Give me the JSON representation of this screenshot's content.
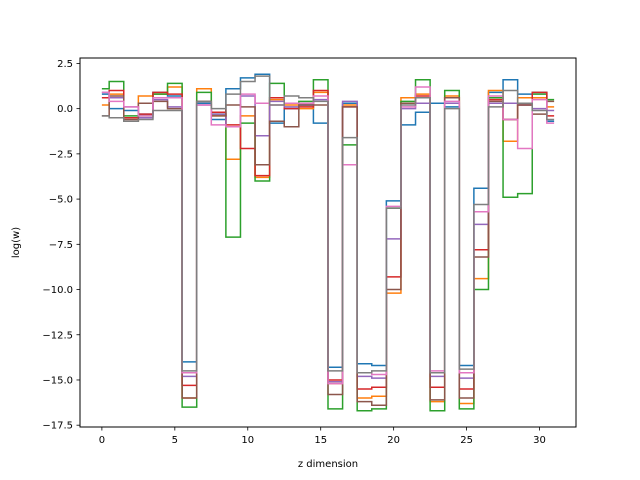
{
  "chart_data": {
    "type": "line",
    "drawstyle": "steps-mid",
    "title": "",
    "xlabel": "z dimension",
    "ylabel": "log(w)",
    "xlim": [
      -1.5,
      32.5
    ],
    "ylim": [
      -17.6,
      2.8
    ],
    "xticks": [
      0,
      5,
      10,
      15,
      20,
      25,
      30
    ],
    "yticks": [
      2.5,
      0.0,
      -2.5,
      -5.0,
      -7.5,
      -10.0,
      -12.5,
      -15.0,
      -17.5
    ],
    "ytick_labels": [
      "2.5",
      "0.0",
      "−2.5",
      "−5.0",
      "−7.5",
      "−10.0",
      "−12.5",
      "−15.0",
      "−17.5"
    ],
    "grid": false,
    "legend": "none",
    "x": [
      0,
      1,
      2,
      3,
      4,
      5,
      6,
      7,
      8,
      9,
      10,
      11,
      12,
      13,
      14,
      15,
      16,
      17,
      18,
      19,
      20,
      21,
      22,
      23,
      24,
      25,
      26,
      27,
      28,
      29,
      30,
      31
    ],
    "series": [
      {
        "color": "#1f77b4",
        "values": [
          0.8,
          0.0,
          -0.1,
          -0.3,
          0.9,
          0.7,
          -14.0,
          0.3,
          -0.6,
          1.1,
          1.7,
          1.9,
          -0.8,
          0.0,
          0.2,
          -0.8,
          -14.3,
          0.3,
          -14.1,
          -14.2,
          -5.1,
          -0.9,
          -0.2,
          0.3,
          0.1,
          -14.2,
          -4.4,
          0.9,
          1.6,
          0.8,
          0.9,
          -0.7
        ]
      },
      {
        "color": "#ff7f0e",
        "values": [
          0.2,
          0.8,
          -0.7,
          0.7,
          0.8,
          1.2,
          -16.0,
          1.1,
          -0.4,
          -2.8,
          -0.4,
          -3.8,
          0.5,
          0.2,
          0.0,
          0.9,
          -15.2,
          0.2,
          -16.0,
          -15.9,
          -10.2,
          0.6,
          0.8,
          -16.2,
          0.7,
          -16.3,
          -9.4,
          1.0,
          -1.8,
          0.6,
          0.6,
          0.1
        ]
      },
      {
        "color": "#2ca02c",
        "values": [
          1.1,
          1.5,
          -0.4,
          -0.4,
          0.8,
          1.4,
          -16.5,
          0.9,
          -0.3,
          -7.1,
          -0.8,
          -4.0,
          1.4,
          0.3,
          0.4,
          1.6,
          -16.6,
          -2.0,
          -16.7,
          -16.6,
          -5.5,
          0.4,
          1.6,
          -16.7,
          1.0,
          -16.6,
          -10.0,
          0.6,
          -4.9,
          -4.7,
          0.8,
          0.5
        ]
      },
      {
        "color": "#d62728",
        "values": [
          0.6,
          1.0,
          -0.5,
          -0.3,
          0.9,
          0.8,
          -15.3,
          0.4,
          -0.2,
          -0.9,
          -2.2,
          -3.7,
          0.6,
          0.0,
          0.1,
          1.0,
          -15.0,
          0.1,
          -15.5,
          -15.4,
          -9.3,
          0.3,
          0.7,
          -15.4,
          0.6,
          -15.5,
          -7.8,
          0.5,
          -0.6,
          0.2,
          0.9,
          -0.4
        ]
      },
      {
        "color": "#9467bd",
        "values": [
          0.9,
          0.6,
          0.1,
          -0.5,
          0.5,
          0.1,
          -14.8,
          0.2,
          -0.3,
          -1.0,
          0.7,
          -1.5,
          0.4,
          0.1,
          0.2,
          0.5,
          -15.1,
          0.4,
          -14.8,
          -14.9,
          -7.2,
          0.0,
          0.3,
          -14.8,
          0.3,
          -14.9,
          -6.4,
          0.3,
          0.3,
          0.2,
          0.0,
          -0.1
        ]
      },
      {
        "color": "#8c564b",
        "values": [
          -0.4,
          0.7,
          -0.6,
          0.3,
          0.4,
          0.0,
          -16.0,
          0.4,
          -0.4,
          0.2,
          0.1,
          -3.1,
          -0.7,
          -1.0,
          0.2,
          0.2,
          -15.8,
          0.1,
          -16.2,
          -16.4,
          -10.0,
          0.3,
          0.6,
          -16.1,
          0.6,
          -16.0,
          -8.2,
          0.4,
          -0.6,
          0.2,
          -0.3,
          0.4
        ]
      },
      {
        "color": "#e377c2",
        "values": [
          0.9,
          0.4,
          0.1,
          -0.4,
          0.6,
          0.6,
          -14.6,
          0.2,
          -0.9,
          -1.0,
          0.8,
          0.3,
          0.2,
          0.3,
          0.3,
          0.7,
          -15.2,
          -3.1,
          -14.6,
          -14.7,
          -5.4,
          0.1,
          1.2,
          -14.5,
          0.4,
          -14.6,
          -5.7,
          0.7,
          -0.6,
          -2.2,
          0.5,
          -0.8
        ]
      },
      {
        "color": "#7f7f7f",
        "values": [
          -0.4,
          -0.5,
          -0.7,
          -0.6,
          -0.1,
          -0.1,
          -14.5,
          0.4,
          0.0,
          0.8,
          1.5,
          1.8,
          0.2,
          0.7,
          0.6,
          0.4,
          -14.5,
          -1.6,
          -14.6,
          -14.5,
          -5.5,
          0.2,
          0.6,
          -14.6,
          0.0,
          -14.4,
          -5.3,
          0.1,
          1.0,
          0.3,
          -0.1,
          -0.6
        ]
      }
    ]
  }
}
